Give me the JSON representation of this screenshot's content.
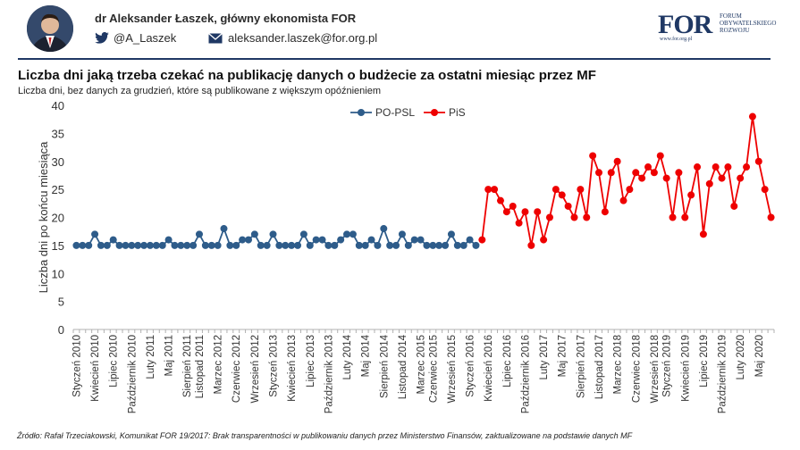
{
  "header": {
    "author": "dr Aleksander Łaszek, główny ekonomista FOR",
    "twitter": "@A_Laszek",
    "email": "aleksander.laszek@for.org.pl",
    "logo_big": "FOR",
    "logo_small": "FORUM OBYWATELSKIEGO ROZWOJU",
    "logo_url": "www.for.org.pl",
    "brand_color": "#1f3864"
  },
  "footer": {
    "source": "Źródło: Rafał Trzeciakowski, Komunikat FOR 19/2017: Brak transparentności w publikowaniu danych przez Ministerstwo Finansów, zaktualizowane na podstawie danych MF"
  },
  "chart_data": {
    "type": "line",
    "title": "Liczba dni jaką trzeba czekać na publikację danych o budżecie za ostatni miesiąc przez MF",
    "subtitle": "Liczba dni, bez danych za grudzień, które są publikowane z większym opóźnieniem",
    "ylabel": "Liczba dni po końcu miesiąca",
    "xlabel": "",
    "ylim": [
      0,
      40
    ],
    "yticks": [
      0,
      5,
      10,
      15,
      20,
      25,
      30,
      35,
      40
    ],
    "grid": false,
    "legend_position": "top-center",
    "x_tick_labels": [
      "Styczeń 2010",
      "Kwiecień 2010",
      "Lipiec 2010",
      "Październik 2010",
      "Luty 2011",
      "Maj 2011",
      "Sierpień 2011",
      "Listopad 2011",
      "Marzec 2012",
      "Czerwiec 2012",
      "Wrzesień 2012",
      "Styczeń 2013",
      "Kwiecień 2013",
      "Lipiec 2013",
      "Październik 2013",
      "Luty 2014",
      "Maj 2014",
      "Sierpień 2014",
      "Listopad 2014",
      "Marzec 2015",
      "Czerwiec 2015",
      "Wrzesień 2015",
      "Styczeń 2016",
      "Kwiecień 2016",
      "Lipiec 2016",
      "Październik 2016",
      "Luty 2017",
      "Maj 2017",
      "Sierpień 2017",
      "Listopad 2017",
      "Marzec 2018",
      "Czerwiec 2018",
      "Wrzesień 2018",
      "Styczeń 2019",
      "Kwiecień 2019",
      "Lipiec 2019",
      "Październik 2019",
      "Luty 2020",
      "Maj 2020"
    ],
    "series": [
      {
        "name": "PO-PSL",
        "color": "#2e5c8a",
        "values": [
          15,
          15,
          15,
          17,
          15,
          15,
          16,
          15,
          15,
          15,
          15,
          15,
          15,
          15,
          15,
          16,
          15,
          15,
          15,
          15,
          17,
          15,
          15,
          15,
          18,
          15,
          15,
          16,
          16,
          17,
          15,
          15,
          17,
          15,
          15,
          15,
          15,
          17,
          15,
          16,
          16,
          15,
          15,
          16,
          17,
          17,
          15,
          15,
          16,
          15,
          18,
          15,
          15,
          17,
          15,
          16,
          16,
          15,
          15,
          15,
          15,
          17,
          15,
          15,
          16,
          15
        ],
        "start_index": 0
      },
      {
        "name": "PiS",
        "color": "#ee0000",
        "values": [
          16,
          25,
          25,
          23,
          21,
          22,
          19,
          21,
          15,
          21,
          16,
          20,
          25,
          24,
          22,
          20,
          25,
          20,
          31,
          28,
          21,
          28,
          30,
          23,
          25,
          28,
          27,
          29,
          28,
          31,
          27,
          20,
          28,
          20,
          24,
          29,
          17,
          26,
          29,
          27,
          29,
          22,
          27,
          29,
          38,
          30,
          25,
          20
        ],
        "start_index": 66
      }
    ]
  }
}
